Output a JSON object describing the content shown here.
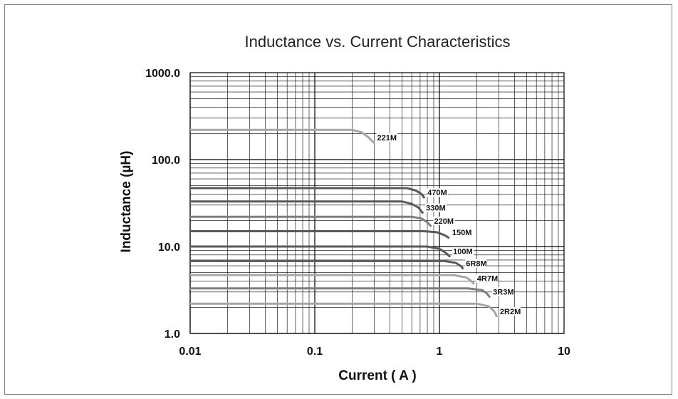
{
  "chart_data": {
    "type": "line",
    "title": "Inductance  vs.  Current Characteristics",
    "xlabel": "Current ( A )",
    "ylabel": "Inductance (µH)",
    "x_scale": "log",
    "y_scale": "log",
    "xlim": [
      0.01,
      10
    ],
    "ylim": [
      1,
      1000
    ],
    "x_tick_labels": [
      "0.01",
      "0.1",
      "1",
      "10"
    ],
    "y_tick_labels": [
      "1000.0",
      "100.0",
      "10.0",
      "1.0"
    ],
    "x_ticks": [
      0.01,
      0.1,
      1,
      10
    ],
    "y_ticks": [
      1000,
      100,
      10,
      1
    ],
    "grid": true,
    "series": [
      {
        "name": "221M",
        "color": "#a6a6a6",
        "points": [
          [
            0.01,
            220
          ],
          [
            0.2,
            220
          ],
          [
            0.24,
            205
          ],
          [
            0.27,
            180
          ],
          [
            0.3,
            155
          ]
        ]
      },
      {
        "name": "470M",
        "color": "#595959",
        "points": [
          [
            0.01,
            47
          ],
          [
            0.55,
            47
          ],
          [
            0.65,
            44
          ],
          [
            0.72,
            40
          ],
          [
            0.76,
            36
          ]
        ]
      },
      {
        "name": "330M",
        "color": "#595959",
        "points": [
          [
            0.01,
            33
          ],
          [
            0.5,
            33
          ],
          [
            0.6,
            31
          ],
          [
            0.68,
            28
          ],
          [
            0.74,
            24
          ]
        ]
      },
      {
        "name": "220M",
        "color": "#7f7f7f",
        "points": [
          [
            0.01,
            22
          ],
          [
            0.6,
            22
          ],
          [
            0.72,
            21
          ],
          [
            0.8,
            19
          ],
          [
            0.86,
            17
          ]
        ]
      },
      {
        "name": "150M",
        "color": "#595959",
        "points": [
          [
            0.01,
            15
          ],
          [
            0.75,
            15
          ],
          [
            0.95,
            14.6
          ],
          [
            1.1,
            13.5
          ],
          [
            1.2,
            12.5
          ]
        ]
      },
      {
        "name": "100M",
        "color": "#595959",
        "points": [
          [
            0.01,
            10
          ],
          [
            0.8,
            10
          ],
          [
            1.0,
            9.4
          ],
          [
            1.12,
            8.5
          ],
          [
            1.22,
            7.6
          ]
        ]
      },
      {
        "name": "6R8M",
        "color": "#595959",
        "points": [
          [
            0.01,
            6.8
          ],
          [
            1.1,
            6.8
          ],
          [
            1.35,
            6.5
          ],
          [
            1.5,
            5.9
          ],
          [
            1.55,
            5.5
          ]
        ]
      },
      {
        "name": "4R7M",
        "color": "#a6a6a6",
        "points": [
          [
            0.01,
            4.7
          ],
          [
            1.3,
            4.7
          ],
          [
            1.65,
            4.4
          ],
          [
            1.8,
            4.0
          ],
          [
            1.9,
            3.7
          ]
        ]
      },
      {
        "name": "3R3M",
        "color": "#7f7f7f",
        "points": [
          [
            0.01,
            3.3
          ],
          [
            1.7,
            3.3
          ],
          [
            2.2,
            3.15
          ],
          [
            2.4,
            2.9
          ],
          [
            2.55,
            2.6
          ]
        ]
      },
      {
        "name": "2R2M",
        "color": "#a6a6a6",
        "points": [
          [
            0.01,
            2.2
          ],
          [
            2.0,
            2.2
          ],
          [
            2.5,
            2.05
          ],
          [
            2.75,
            1.8
          ],
          [
            2.9,
            1.55
          ]
        ]
      }
    ]
  }
}
